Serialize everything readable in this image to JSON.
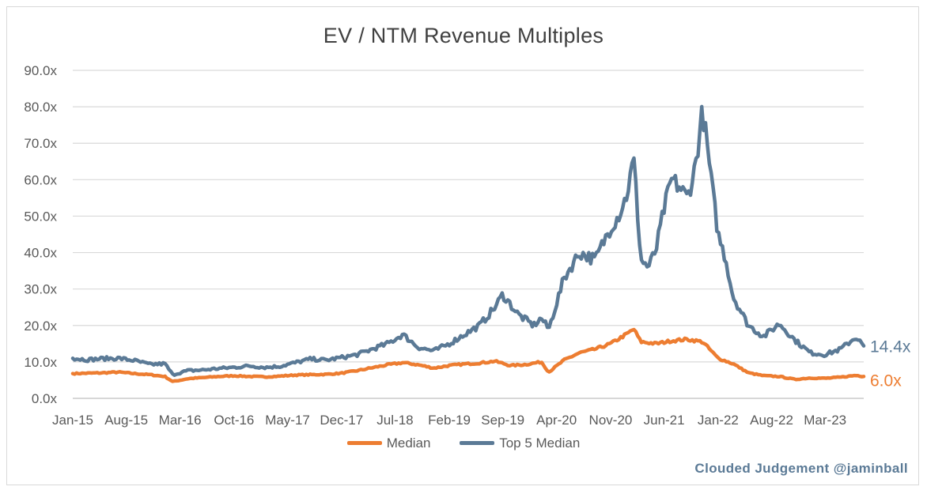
{
  "chart_data": {
    "type": "line",
    "title": "EV / NTM Revenue Multiples",
    "xlabel": "",
    "ylabel": "",
    "ylim": [
      0,
      90
    ],
    "yticks": [
      "0.0x",
      "10.0x",
      "20.0x",
      "30.0x",
      "40.0x",
      "50.0x",
      "60.0x",
      "70.0x",
      "80.0x",
      "90.0x"
    ],
    "xticks": [
      "Jan-15",
      "Aug-15",
      "Mar-16",
      "Oct-16",
      "May-17",
      "Dec-17",
      "Jul-18",
      "Feb-19",
      "Sep-19",
      "Apr-20",
      "Nov-20",
      "Jun-21",
      "Jan-22",
      "Aug-22",
      "Mar-23"
    ],
    "grid": true,
    "legend": "bottom",
    "series": [
      {
        "name": "Median",
        "color": "#ED7D31",
        "end_label": "6.0x",
        "points": [
          [
            "2015-01",
            6.8
          ],
          [
            "2015-03",
            6.9
          ],
          [
            "2015-05",
            7.0
          ],
          [
            "2015-07",
            7.2
          ],
          [
            "2015-09",
            6.8
          ],
          [
            "2015-11",
            6.5
          ],
          [
            "2016-01",
            6.0
          ],
          [
            "2016-02",
            4.6
          ],
          [
            "2016-04",
            5.4
          ],
          [
            "2016-06",
            5.7
          ],
          [
            "2016-08",
            6.0
          ],
          [
            "2016-10",
            6.2
          ],
          [
            "2016-12",
            6.0
          ],
          [
            "2017-02",
            5.9
          ],
          [
            "2017-04",
            6.1
          ],
          [
            "2017-06",
            6.4
          ],
          [
            "2017-08",
            6.5
          ],
          [
            "2017-10",
            6.6
          ],
          [
            "2017-12",
            6.9
          ],
          [
            "2018-02",
            7.6
          ],
          [
            "2018-04",
            8.4
          ],
          [
            "2018-06",
            9.2
          ],
          [
            "2018-08",
            9.8
          ],
          [
            "2018-10",
            9.2
          ],
          [
            "2018-12",
            8.3
          ],
          [
            "2019-02",
            9.0
          ],
          [
            "2019-04",
            9.4
          ],
          [
            "2019-06",
            9.7
          ],
          [
            "2019-08",
            10.2
          ],
          [
            "2019-10",
            9.0
          ],
          [
            "2019-12",
            9.3
          ],
          [
            "2020-02",
            10.0
          ],
          [
            "2020-03",
            7.2
          ],
          [
            "2020-05",
            10.5
          ],
          [
            "2020-07",
            12.5
          ],
          [
            "2020-09",
            13.5
          ],
          [
            "2020-11",
            15.0
          ],
          [
            "2021-01",
            17.5
          ],
          [
            "2021-02",
            19.0
          ],
          [
            "2021-03",
            15.5
          ],
          [
            "2021-05",
            15.0
          ],
          [
            "2021-07",
            15.8
          ],
          [
            "2021-09",
            16.2
          ],
          [
            "2021-11",
            15.5
          ],
          [
            "2022-01",
            11.0
          ],
          [
            "2022-03",
            9.5
          ],
          [
            "2022-05",
            7.0
          ],
          [
            "2022-07",
            6.2
          ],
          [
            "2022-09",
            6.0
          ],
          [
            "2022-11",
            5.2
          ],
          [
            "2023-01",
            5.6
          ],
          [
            "2023-03",
            5.5
          ],
          [
            "2023-05",
            5.8
          ],
          [
            "2023-07",
            6.3
          ],
          [
            "2023-08",
            6.0
          ]
        ]
      },
      {
        "name": "Top 5 Median",
        "color": "#5B7A96",
        "end_label": "14.4x",
        "points": [
          [
            "2015-01",
            11.0
          ],
          [
            "2015-03",
            10.6
          ],
          [
            "2015-05",
            10.9
          ],
          [
            "2015-07",
            11.0
          ],
          [
            "2015-09",
            10.4
          ],
          [
            "2015-11",
            9.3
          ],
          [
            "2016-01",
            9.5
          ],
          [
            "2016-02",
            6.5
          ],
          [
            "2016-04",
            7.6
          ],
          [
            "2016-06",
            7.8
          ],
          [
            "2016-08",
            8.2
          ],
          [
            "2016-10",
            8.5
          ],
          [
            "2016-12",
            8.9
          ],
          [
            "2017-02",
            8.5
          ],
          [
            "2017-04",
            8.8
          ],
          [
            "2017-06",
            9.8
          ],
          [
            "2017-08",
            10.8
          ],
          [
            "2017-10",
            10.5
          ],
          [
            "2017-12",
            11.2
          ],
          [
            "2018-02",
            12.0
          ],
          [
            "2018-04",
            13.5
          ],
          [
            "2018-06",
            15.0
          ],
          [
            "2018-08",
            17.5
          ],
          [
            "2018-10",
            14.0
          ],
          [
            "2018-12",
            13.0
          ],
          [
            "2019-02",
            15.0
          ],
          [
            "2019-04",
            17.5
          ],
          [
            "2019-06",
            20.0
          ],
          [
            "2019-08",
            25.0
          ],
          [
            "2019-09",
            28.5
          ],
          [
            "2019-11",
            23.0
          ],
          [
            "2020-01",
            20.0
          ],
          [
            "2020-02",
            22.0
          ],
          [
            "2020-03",
            19.0
          ],
          [
            "2020-05",
            33.0
          ],
          [
            "2020-07",
            40.0
          ],
          [
            "2020-09",
            38.0
          ],
          [
            "2020-11",
            47.0
          ],
          [
            "2020-12",
            50.0
          ],
          [
            "2021-01",
            55.0
          ],
          [
            "2021-02",
            65.5
          ],
          [
            "2021-03",
            38.0
          ],
          [
            "2021-04",
            36.0
          ],
          [
            "2021-05",
            41.0
          ],
          [
            "2021-06",
            52.0
          ],
          [
            "2021-07",
            60.0
          ],
          [
            "2021-08",
            58.0
          ],
          [
            "2021-09",
            55.0
          ],
          [
            "2021-10",
            63.0
          ],
          [
            "2021-11",
            79.0
          ],
          [
            "2021-12",
            62.0
          ],
          [
            "2022-01",
            45.0
          ],
          [
            "2022-02",
            38.0
          ],
          [
            "2022-03",
            28.0
          ],
          [
            "2022-05",
            20.0
          ],
          [
            "2022-07",
            17.0
          ],
          [
            "2022-09",
            20.5
          ],
          [
            "2022-11",
            16.0
          ],
          [
            "2023-01",
            12.5
          ],
          [
            "2023-03",
            12.0
          ],
          [
            "2023-05",
            13.5
          ],
          [
            "2023-07",
            16.8
          ],
          [
            "2023-08",
            14.4
          ]
        ]
      }
    ]
  },
  "watermark": "Clouded Judgement @jaminball"
}
